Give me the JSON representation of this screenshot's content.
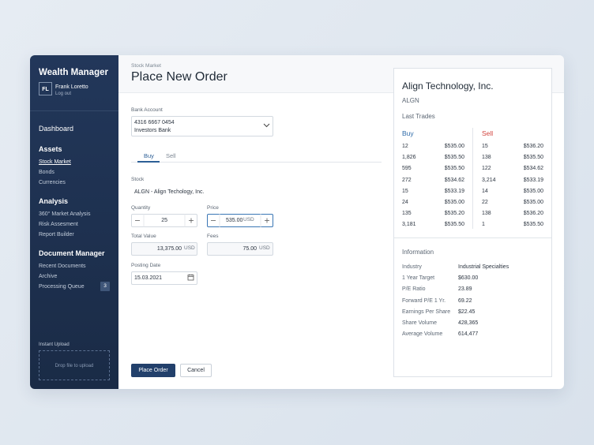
{
  "sidebar": {
    "app_title": "Wealth Manager",
    "user_initials": "FL",
    "user_name": "Frank Loretto",
    "logout": "Log out",
    "dashboard": "Dashboard",
    "sections": [
      {
        "title": "Assets",
        "items": [
          "Stock Market",
          "Bonds",
          "Currencies"
        ]
      },
      {
        "title": "Analysis",
        "items": [
          "360° Market Analysis",
          "Risk Assesment",
          "Report Builder"
        ]
      },
      {
        "title": "Document Manager",
        "items": [
          "Recent Documents",
          "Archive",
          "Processing Queue"
        ]
      }
    ],
    "queue_badge": "3",
    "upload_label": "Instant Upload",
    "dropzone": "Drop file to upload"
  },
  "header": {
    "breadcrumb": "Stock Market",
    "title": "Place New Order"
  },
  "form": {
    "bank_label": "Bank Account",
    "bank_number": "4316 6667 0454",
    "bank_name": "Investors Bank",
    "tabs": [
      "Buy",
      "Sell"
    ],
    "stock_label": "Stock",
    "stock_value": "ALGN - Align Techology, Inc.",
    "quantity_label": "Quantity",
    "quantity_value": "25",
    "price_label": "Price",
    "price_value": "535.00",
    "price_unit": "USD",
    "total_label": "Total Value",
    "total_value": "13,375.00",
    "total_unit": "USD",
    "fees_label": "Fees",
    "fees_value": "75.00",
    "fees_unit": "USD",
    "date_label": "Posting Date",
    "date_value": "15.03.2021",
    "submit": "Place Order",
    "cancel": "Cancel"
  },
  "panel": {
    "company": "Align Technology, Inc.",
    "ticker": "ALGN",
    "trades_title": "Last Trades",
    "buy_title": "Buy",
    "sell_title": "Sell",
    "buy": [
      [
        "12",
        "$535.00"
      ],
      [
        "1,826",
        "$535.50"
      ],
      [
        "595",
        "$535.50"
      ],
      [
        "272",
        "$534.62"
      ],
      [
        "15",
        "$533.19"
      ],
      [
        "24",
        "$535.00"
      ],
      [
        "135",
        "$535.20"
      ],
      [
        "3,181",
        "$535.50"
      ]
    ],
    "sell": [
      [
        "15",
        "$536.20"
      ],
      [
        "138",
        "$535.50"
      ],
      [
        "122",
        "$534.62"
      ],
      [
        "3,214",
        "$533.19"
      ],
      [
        "14",
        "$535.00"
      ],
      [
        "22",
        "$535.00"
      ],
      [
        "138",
        "$536.20"
      ],
      [
        "1",
        "$535.50"
      ]
    ],
    "info_title": "Information",
    "info": [
      [
        "Industry",
        "Industrial Specialties"
      ],
      [
        "1 Year Target",
        "$630.00"
      ],
      [
        "P/E Ratio",
        "23.89"
      ],
      [
        "Forward P/E 1 Yr.",
        "69.22"
      ],
      [
        "Earnings Per Share",
        "$22.45"
      ],
      [
        "Share Volume",
        "428,365"
      ],
      [
        "Average Volume",
        "614,477"
      ]
    ]
  }
}
